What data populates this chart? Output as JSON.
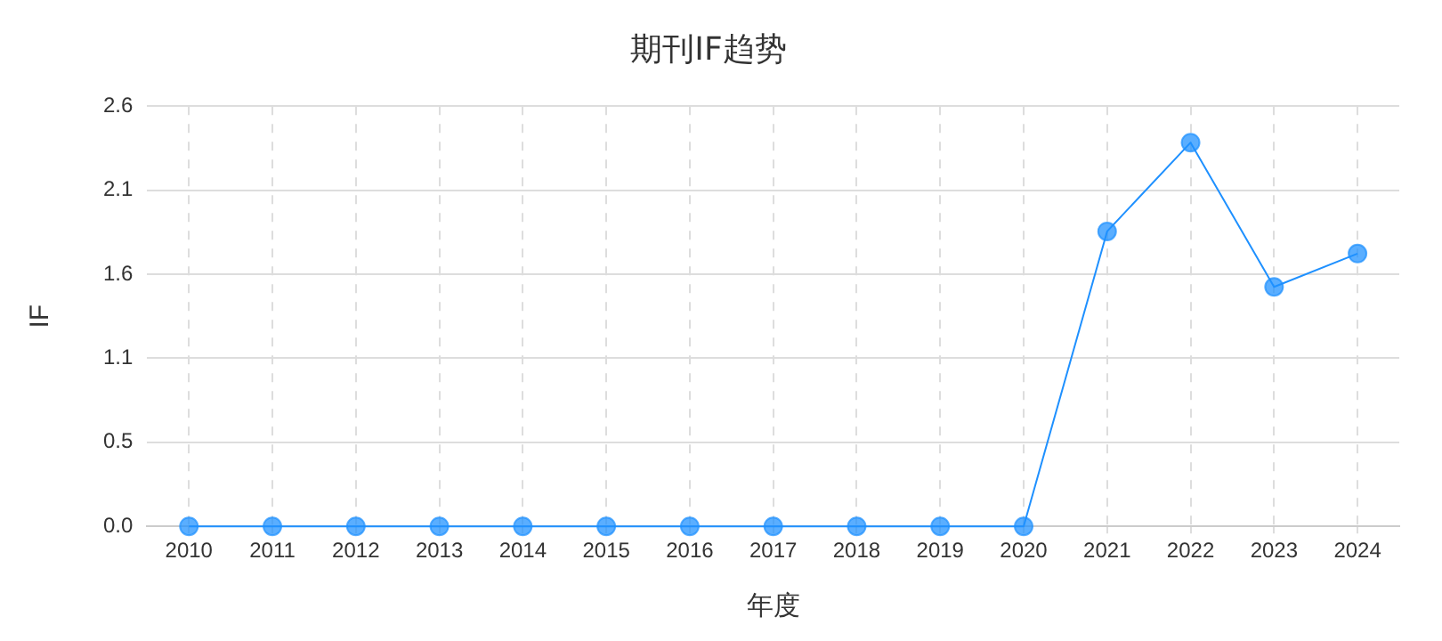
{
  "chart_data": {
    "type": "line",
    "title": "期刊IF趋势",
    "xlabel": "年度",
    "ylabel": "IF",
    "categories": [
      "2010",
      "2011",
      "2012",
      "2013",
      "2014",
      "2015",
      "2016",
      "2017",
      "2018",
      "2019",
      "2020",
      "2021",
      "2022",
      "2023",
      "2024"
    ],
    "series": [
      {
        "color": "#1e90ff",
        "values": [
          0,
          0,
          0,
          0,
          0,
          0,
          0,
          0,
          0,
          0,
          0,
          1.86,
          2.42,
          1.51,
          1.72
        ]
      }
    ],
    "ylim": [
      0,
      2.65
    ],
    "yticks": [
      {
        "value": 0,
        "label": "0.0"
      },
      {
        "value": 0.53,
        "label": "0.5"
      },
      {
        "value": 1.06,
        "label": "1.1"
      },
      {
        "value": 1.59,
        "label": "1.6"
      },
      {
        "value": 2.12,
        "label": "2.1"
      },
      {
        "value": 2.65,
        "label": "2.6"
      }
    ],
    "grid": true,
    "legend": false,
    "marker": "circle",
    "line_style": "solid"
  }
}
